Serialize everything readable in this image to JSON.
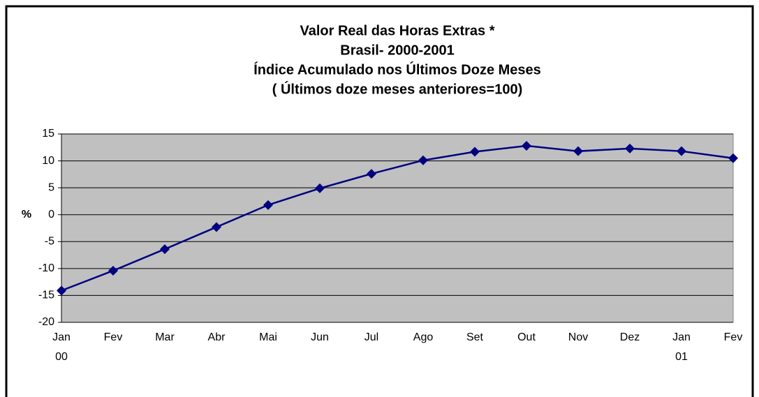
{
  "chart_data": {
    "type": "line",
    "title": [
      "Valor Real das Horas Extras *",
      "Brasil- 2000-2001",
      "Índice Acumulado nos Últimos Doze Meses",
      "( Últimos doze meses anteriores=100)"
    ],
    "ylabel": "%",
    "categories": [
      "Jan\n00",
      "Fev",
      "Mar",
      "Abr",
      "Mai",
      "Jun",
      "Jul",
      "Ago",
      "Set",
      "Out",
      "Nov",
      "Dez",
      "Jan\n01",
      "Fev"
    ],
    "series": [
      {
        "color": "#000080",
        "values": [
          -14.1,
          -10.4,
          -6.4,
          -2.3,
          1.8,
          4.9,
          7.6,
          10.1,
          11.7,
          12.8,
          11.8,
          12.3,
          11.8,
          10.5
        ]
      }
    ],
    "ylim": [
      -20,
      15
    ],
    "yticks": [
      -20,
      -15,
      -10,
      -5,
      0,
      5,
      10,
      15
    ],
    "grid": true
  }
}
